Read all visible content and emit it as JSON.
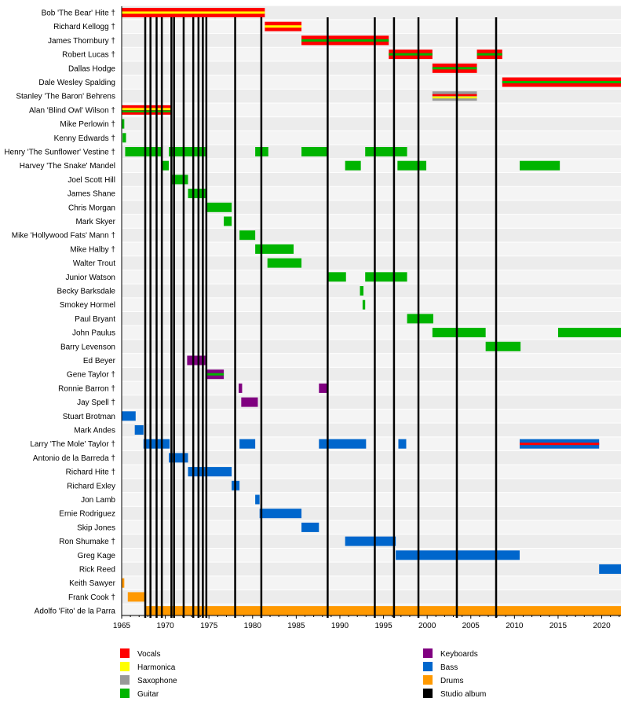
{
  "chart_data": {
    "type": "timeline",
    "xlim": [
      1965,
      2022.2
    ],
    "x_ticks": [
      1965,
      1970,
      1975,
      1980,
      1985,
      1990,
      1995,
      2000,
      2005,
      2010,
      2015,
      2020
    ],
    "grid": "alternating row bands",
    "colors": {
      "Vocals": "#ff0000",
      "Harmonica": "#ffff00",
      "Saxophone": "#999999",
      "Guitar": "#00b400",
      "Keyboards": "#800080",
      "Bass": "#0066cc",
      "Drums": "#ff9900",
      "Studio album": "#000000"
    },
    "members": [
      {
        "name": "Bob 'The Bear' Hite †",
        "spans": [
          {
            "start": 1965,
            "end": 1981.4,
            "roles": [
              "Vocals",
              "Harmonica"
            ]
          }
        ]
      },
      {
        "name": "Richard Kellogg †",
        "spans": [
          {
            "start": 1981.4,
            "end": 1985.6,
            "roles": [
              "Vocals",
              "Harmonica"
            ]
          }
        ]
      },
      {
        "name": "James Thornbury †",
        "spans": [
          {
            "start": 1985.6,
            "end": 1995.6,
            "roles": [
              "Vocals",
              "Guitar"
            ]
          }
        ]
      },
      {
        "name": "Robert Lucas †",
        "spans": [
          {
            "start": 1995.6,
            "end": 2000.6,
            "roles": [
              "Vocals",
              "Guitar"
            ]
          },
          {
            "start": 2005.7,
            "end": 2008.6,
            "roles": [
              "Vocals",
              "Guitar"
            ]
          }
        ]
      },
      {
        "name": "Dallas Hodge",
        "spans": [
          {
            "start": 2000.6,
            "end": 2005.7,
            "roles": [
              "Vocals",
              "Guitar"
            ]
          }
        ]
      },
      {
        "name": "Dale Wesley Spalding",
        "spans": [
          {
            "start": 2008.6,
            "end": 2022.2,
            "roles": [
              "Vocals",
              "Guitar"
            ]
          }
        ]
      },
      {
        "name": "Stanley 'The Baron' Behrens",
        "spans": [
          {
            "start": 2000.6,
            "end": 2005.7,
            "roles": [
              "Saxophone",
              "Vocals",
              "Harmonica"
            ]
          }
        ]
      },
      {
        "name": "Alan 'Blind Owl' Wilson †",
        "spans": [
          {
            "start": 1965,
            "end": 1970.75,
            "roles": [
              "Vocals",
              "Harmonica",
              "Guitar"
            ]
          }
        ]
      },
      {
        "name": "Mike Perlowin †",
        "spans": [
          {
            "start": 1965,
            "end": 1965.3,
            "roles": [
              "Guitar"
            ]
          }
        ]
      },
      {
        "name": "Kenny Edwards †",
        "spans": [
          {
            "start": 1965.1,
            "end": 1965.5,
            "roles": [
              "Guitar"
            ]
          }
        ]
      },
      {
        "name": "Henry 'The Sunflower' Vestine †",
        "spans": [
          {
            "start": 1965.4,
            "end": 1969.6,
            "roles": [
              "Guitar"
            ]
          },
          {
            "start": 1970.4,
            "end": 1974.6,
            "roles": [
              "Guitar"
            ]
          },
          {
            "start": 1980.3,
            "end": 1981.8,
            "roles": [
              "Guitar"
            ]
          },
          {
            "start": 1985.6,
            "end": 1988.6,
            "roles": [
              "Guitar"
            ]
          },
          {
            "start": 1992.9,
            "end": 1997.7,
            "roles": [
              "Guitar"
            ]
          }
        ]
      },
      {
        "name": "Harvey 'The Snake' Mandel",
        "spans": [
          {
            "start": 1969.6,
            "end": 1970.4,
            "roles": [
              "Guitar"
            ]
          },
          {
            "start": 1990.6,
            "end": 1992.4,
            "roles": [
              "Guitar"
            ]
          },
          {
            "start": 1996.6,
            "end": 1999.9,
            "roles": [
              "Guitar"
            ]
          },
          {
            "start": 2010.6,
            "end": 2015.2,
            "roles": [
              "Guitar"
            ]
          }
        ]
      },
      {
        "name": "Joel Scott Hill",
        "spans": [
          {
            "start": 1970.75,
            "end": 1972.6,
            "roles": [
              "Guitar"
            ]
          }
        ]
      },
      {
        "name": "James Shane",
        "spans": [
          {
            "start": 1972.6,
            "end": 1974.6,
            "roles": [
              "Guitar"
            ]
          }
        ]
      },
      {
        "name": "Chris Morgan",
        "spans": [
          {
            "start": 1974.6,
            "end": 1977.6,
            "roles": [
              "Guitar"
            ]
          }
        ]
      },
      {
        "name": "Mark Skyer",
        "spans": [
          {
            "start": 1976.7,
            "end": 1977.6,
            "roles": [
              "Guitar"
            ]
          }
        ]
      },
      {
        "name": "Mike 'Hollywood Fats' Mann †",
        "spans": [
          {
            "start": 1978.5,
            "end": 1980.3,
            "roles": [
              "Guitar"
            ]
          }
        ]
      },
      {
        "name": "Mike Halby †",
        "spans": [
          {
            "start": 1980.3,
            "end": 1984.7,
            "roles": [
              "Guitar"
            ]
          }
        ]
      },
      {
        "name": "Walter Trout",
        "spans": [
          {
            "start": 1981.7,
            "end": 1985.6,
            "roles": [
              "Guitar"
            ]
          }
        ]
      },
      {
        "name": "Junior Watson",
        "spans": [
          {
            "start": 1988.7,
            "end": 1990.7,
            "roles": [
              "Guitar"
            ]
          },
          {
            "start": 1992.9,
            "end": 1997.7,
            "roles": [
              "Guitar"
            ]
          }
        ]
      },
      {
        "name": "Becky Barksdale",
        "spans": [
          {
            "start": 1992.3,
            "end": 1992.7,
            "roles": [
              "Guitar"
            ]
          }
        ]
      },
      {
        "name": "Smokey Hormel",
        "spans": [
          {
            "start": 1992.6,
            "end": 1992.9,
            "roles": [
              "Guitar"
            ]
          }
        ]
      },
      {
        "name": "Paul Bryant",
        "spans": [
          {
            "start": 1997.7,
            "end": 2000.7,
            "roles": [
              "Guitar"
            ]
          }
        ]
      },
      {
        "name": "John Paulus",
        "spans": [
          {
            "start": 2000.6,
            "end": 2006.7,
            "roles": [
              "Guitar"
            ]
          },
          {
            "start": 2015.0,
            "end": 2022.2,
            "roles": [
              "Guitar"
            ]
          }
        ]
      },
      {
        "name": "Barry Levenson",
        "spans": [
          {
            "start": 2006.7,
            "end": 2010.7,
            "roles": [
              "Guitar"
            ]
          }
        ]
      },
      {
        "name": "Ed Beyer",
        "spans": [
          {
            "start": 1972.5,
            "end": 1974.6,
            "roles": [
              "Keyboards"
            ]
          }
        ]
      },
      {
        "name": "Gene Taylor †",
        "spans": [
          {
            "start": 1974.6,
            "end": 1976.7,
            "roles": [
              "Keyboards",
              "Guitar"
            ]
          }
        ]
      },
      {
        "name": "Ronnie Barron †",
        "spans": [
          {
            "start": 1978.4,
            "end": 1978.8,
            "roles": [
              "Keyboards"
            ]
          },
          {
            "start": 1987.6,
            "end": 1988.6,
            "roles": [
              "Keyboards"
            ]
          }
        ]
      },
      {
        "name": "Jay Spell †",
        "spans": [
          {
            "start": 1978.7,
            "end": 1980.6,
            "roles": [
              "Keyboards"
            ]
          }
        ]
      },
      {
        "name": "Stuart Brotman",
        "spans": [
          {
            "start": 1965,
            "end": 1966.6,
            "roles": [
              "Bass"
            ]
          }
        ]
      },
      {
        "name": "Mark Andes",
        "spans": [
          {
            "start": 1966.5,
            "end": 1967.5,
            "roles": [
              "Bass"
            ]
          }
        ]
      },
      {
        "name": "Larry 'The Mole' Taylor †",
        "spans": [
          {
            "start": 1967.5,
            "end": 1970.5,
            "roles": [
              "Bass"
            ]
          },
          {
            "start": 1978.5,
            "end": 1980.3,
            "roles": [
              "Bass"
            ]
          },
          {
            "start": 1987.6,
            "end": 1993.0,
            "roles": [
              "Bass"
            ]
          },
          {
            "start": 1996.7,
            "end": 1997.6,
            "roles": [
              "Bass"
            ]
          },
          {
            "start": 2010.6,
            "end": 2019.7,
            "roles": [
              "Bass",
              "Vocals"
            ]
          }
        ]
      },
      {
        "name": "Antonio de la Barreda †",
        "spans": [
          {
            "start": 1970.4,
            "end": 1972.6,
            "roles": [
              "Bass"
            ]
          }
        ]
      },
      {
        "name": "Richard Hite †",
        "spans": [
          {
            "start": 1972.6,
            "end": 1977.6,
            "roles": [
              "Bass"
            ]
          }
        ]
      },
      {
        "name": "Richard Exley",
        "spans": [
          {
            "start": 1977.6,
            "end": 1978.5,
            "roles": [
              "Bass"
            ]
          }
        ]
      },
      {
        "name": "Jon Lamb",
        "spans": [
          {
            "start": 1980.3,
            "end": 1980.8,
            "roles": [
              "Bass"
            ]
          }
        ]
      },
      {
        "name": "Ernie Rodriguez",
        "spans": [
          {
            "start": 1980.8,
            "end": 1985.6,
            "roles": [
              "Bass"
            ]
          }
        ]
      },
      {
        "name": "Skip Jones",
        "spans": [
          {
            "start": 1985.6,
            "end": 1987.6,
            "roles": [
              "Bass"
            ]
          }
        ]
      },
      {
        "name": "Ron Shumake †",
        "spans": [
          {
            "start": 1990.6,
            "end": 1996.4,
            "roles": [
              "Bass"
            ]
          }
        ]
      },
      {
        "name": "Greg Kage",
        "spans": [
          {
            "start": 1996.4,
            "end": 2010.6,
            "roles": [
              "Bass"
            ]
          }
        ]
      },
      {
        "name": "Rick Reed",
        "spans": [
          {
            "start": 2019.7,
            "end": 2022.2,
            "roles": [
              "Bass"
            ]
          }
        ]
      },
      {
        "name": "Keith Sawyer",
        "spans": [
          {
            "start": 1965,
            "end": 1965.3,
            "roles": [
              "Drums"
            ]
          }
        ]
      },
      {
        "name": "Frank Cook †",
        "spans": [
          {
            "start": 1965.7,
            "end": 1967.8,
            "roles": [
              "Drums"
            ]
          }
        ]
      },
      {
        "name": "Adolfo 'Fito' de la Parra",
        "spans": [
          {
            "start": 1967.8,
            "end": 2022.2,
            "roles": [
              "Drums"
            ]
          }
        ]
      }
    ],
    "studio_albums": [
      1967.7,
      1968.3,
      1969.0,
      1969.6,
      1970.7,
      1971.0,
      1972.1,
      1973.2,
      1973.8,
      1974.3,
      1974.7,
      1978.0,
      1981.0,
      1988.6,
      1994.0,
      1996.2,
      1999.0,
      2003.4,
      2007.9
    ],
    "legend": [
      {
        "label": "Vocals",
        "color": "#ff0000"
      },
      {
        "label": "Harmonica",
        "color": "#ffff00"
      },
      {
        "label": "Saxophone",
        "color": "#999999"
      },
      {
        "label": "Guitar",
        "color": "#00b400"
      },
      {
        "label": "Keyboards",
        "color": "#800080"
      },
      {
        "label": "Bass",
        "color": "#0066cc"
      },
      {
        "label": "Drums",
        "color": "#ff9900"
      },
      {
        "label": "Studio album",
        "color": "#000000"
      }
    ],
    "legend_position": "bottom"
  }
}
